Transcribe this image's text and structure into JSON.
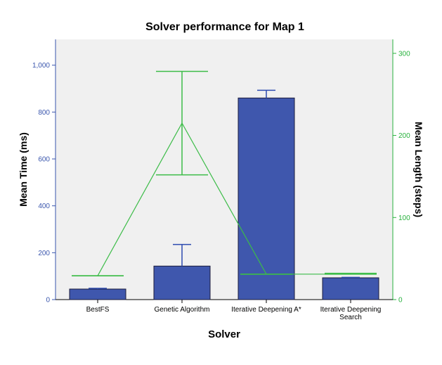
{
  "chart_data": {
    "type": "bar",
    "title": "Solver performance for Map 1",
    "xlabel": "Solver",
    "categories": [
      [
        "BestFS"
      ],
      [
        "Genetic Algorithm"
      ],
      [
        "Iterative Deepening A*"
      ],
      [
        "Iterative Deepening",
        "Search"
      ]
    ],
    "left_axis": {
      "label": "Mean Time (ms)",
      "ylim": [
        0,
        1110
      ],
      "ticks": [
        0,
        200,
        400,
        600,
        800,
        1000
      ],
      "tick_labels": [
        "0",
        "200",
        "400",
        "600",
        "800",
        "1,000"
      ],
      "color": "#3a56ad"
    },
    "right_axis": {
      "label": "Mean Length (steps)",
      "ylim": [
        0,
        317
      ],
      "ticks": [
        0,
        100,
        200,
        300
      ],
      "tick_labels": [
        "0",
        "100",
        "200",
        "300"
      ],
      "color": "#27b13c"
    },
    "series": [
      {
        "kind": "bar",
        "axis": "left",
        "values": [
          45,
          143,
          860,
          93
        ],
        "error_upper": [
          48,
          235,
          893,
          95
        ],
        "color": "#3f57ad"
      },
      {
        "kind": "line",
        "axis": "right",
        "values": [
          29,
          215,
          31,
          31
        ],
        "error_lower": [
          29,
          152,
          31,
          31
        ],
        "error_upper": [
          29,
          278,
          31,
          32
        ],
        "color": "#3cbc48"
      }
    ],
    "background": "#f0f0f0"
  }
}
